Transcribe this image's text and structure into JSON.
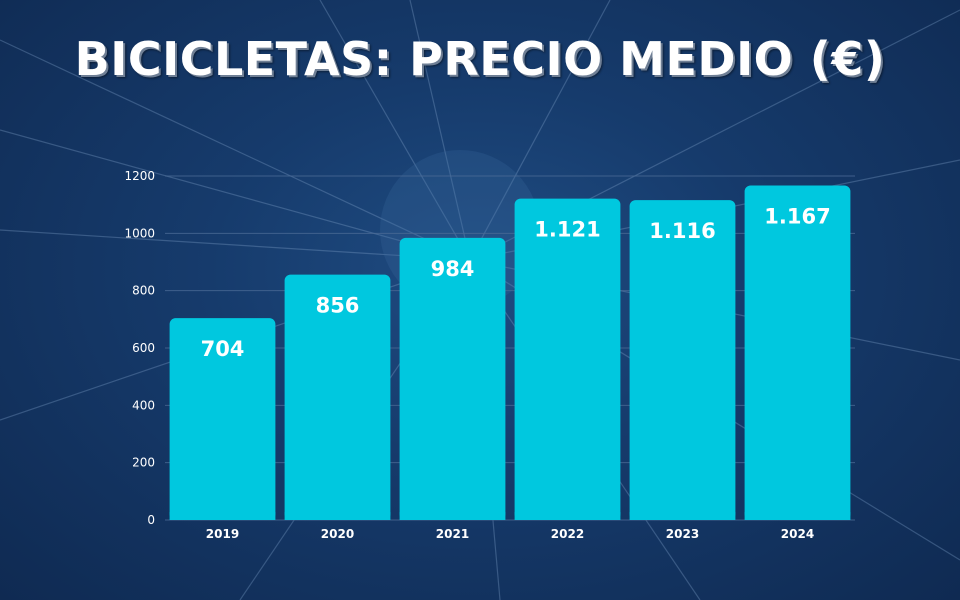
{
  "title": "BICICLETAS: PRECIO MEDIO (€)",
  "colors": {
    "bar": "#00c8df",
    "background": "#163b6c",
    "text": "#ffffff",
    "grid": "#4a6a95"
  },
  "chart_data": {
    "type": "bar",
    "title": "BICICLETAS: PRECIO MEDIO (€)",
    "categories": [
      "2019",
      "2020",
      "2021",
      "2022",
      "2023",
      "2024"
    ],
    "values": [
      704,
      856,
      984,
      1121,
      1116,
      1167
    ],
    "data_labels": [
      "704",
      "856",
      "984",
      "1.121",
      "1.116",
      "1.167"
    ],
    "yticks": [
      "0",
      "200",
      "400",
      "600",
      "800",
      "1000",
      "1200"
    ],
    "ylim": [
      0,
      1200
    ],
    "grid": true,
    "legend": "none"
  }
}
